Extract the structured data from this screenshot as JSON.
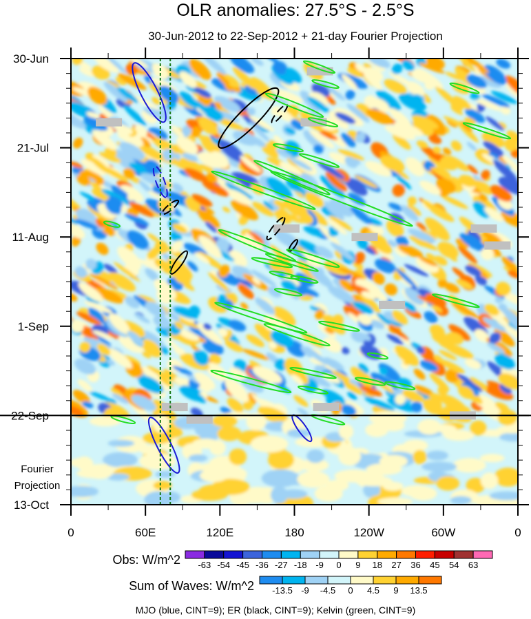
{
  "chart_data": {
    "type": "heatmap",
    "title": "OLR anomalies: 27.5°S - 2.5°S",
    "subtitle": "30-Jun-2012 to 22-Sep-2012 + 21-day Fourier Projection",
    "x_ticks": [
      "0",
      "60E",
      "120E",
      "180",
      "120W",
      "60W",
      "0"
    ],
    "x_tick_lon": [
      0,
      60,
      120,
      180,
      240,
      300,
      360
    ],
    "y_ticks": [
      "30-Jun",
      "21-Jul",
      "11-Aug",
      "1-Sep",
      "22-Sep",
      "13-Oct"
    ],
    "y_tick_day": [
      0,
      21,
      42,
      63,
      84,
      105
    ],
    "projection_label_1": "Fourier",
    "projection_label_2": "Projection",
    "observation_end_day": 84,
    "obs_colorbar": {
      "label": "Obs: W/m^2",
      "levels": [
        "-63",
        "-54",
        "-45",
        "-36",
        "-27",
        "-18",
        "-9",
        "0",
        "9",
        "18",
        "27",
        "36",
        "45",
        "54",
        "63"
      ],
      "colors": [
        "#8a2be2",
        "#0a0a9a",
        "#1414d2",
        "#3c64dc",
        "#1e8cf0",
        "#00b4f0",
        "#9fd2f5",
        "#d2f5fa",
        "#fffac8",
        "#ffd232",
        "#ffaa00",
        "#ff7800",
        "#ff1e00",
        "#c80000",
        "#a03232",
        "#ff69b4"
      ]
    },
    "waves_colorbar": {
      "label": "Sum of Waves: W/m^2",
      "levels": [
        "-13.5",
        "-9",
        "-4.5",
        "0",
        "4.5",
        "9",
        "13.5"
      ],
      "colors": [
        "#1e8cf0",
        "#00b4f0",
        "#9fd2f5",
        "#d2f5fa",
        "#fffac8",
        "#ffd232",
        "#ffaa00",
        "#ff7800"
      ]
    },
    "legend_note": "MJO (blue, CINT=9); ER (black, CINT=9); Kelvin (green, CINT=9)",
    "reference_lines_lon": [
      72,
      80
    ],
    "contour_colors": {
      "mjo": "#1a1ad6",
      "er": "#000000",
      "kelvin": "#22dd22"
    }
  }
}
